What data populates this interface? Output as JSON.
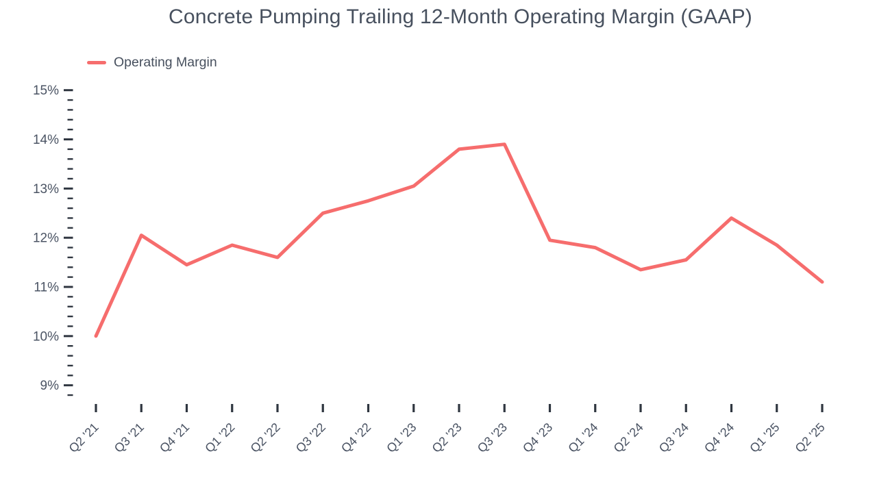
{
  "chart_data": {
    "type": "line",
    "title": "Concrete Pumping Trailing 12-Month Operating Margin (GAAP)",
    "legend": {
      "position": "top-left",
      "items": [
        {
          "label": "Operating Margin",
          "color": "#f66d6d"
        }
      ]
    },
    "categories": [
      "Q2 '21",
      "Q3 '21",
      "Q4 '21",
      "Q1 '22",
      "Q2 '22",
      "Q3 '22",
      "Q4 '22",
      "Q1 '23",
      "Q2 '23",
      "Q3 '23",
      "Q4 '23",
      "Q1 '24",
      "Q2 '24",
      "Q3 '24",
      "Q4 '24",
      "Q1 '25",
      "Q2 '25"
    ],
    "series": [
      {
        "name": "Operating Margin",
        "color": "#f66d6d",
        "values": [
          10.0,
          12.05,
          11.45,
          11.85,
          11.6,
          12.5,
          12.75,
          13.05,
          13.8,
          13.9,
          11.95,
          11.8,
          11.35,
          11.55,
          12.4,
          11.85,
          11.1
        ]
      }
    ],
    "yaxis": {
      "min": 9,
      "max": 15,
      "major_step": 1,
      "minor_step": 0.2,
      "tick_format": "percent",
      "tick_labels": [
        "15%",
        "14%",
        "13%",
        "12%",
        "11%",
        "10%",
        "9%"
      ]
    },
    "xlabel": "",
    "ylabel": "",
    "grid": false,
    "colors": {
      "line": "#f66d6d",
      "text": "#47505e",
      "axis_tick": "#2f3640"
    }
  }
}
